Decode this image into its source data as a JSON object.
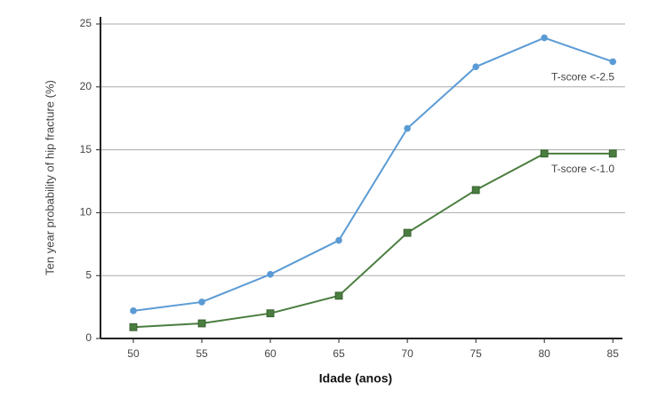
{
  "chart_data": {
    "type": "line",
    "x_label": "Idade (anos)",
    "y_label": "Ten year probability of hip fracture (%)",
    "x": [
      50,
      55,
      60,
      65,
      70,
      75,
      80,
      85
    ],
    "series": [
      {
        "name": "T-score <-2.5",
        "color": "#5b9bd5",
        "marker": "circle",
        "values": [
          2.2,
          2.9,
          5.1,
          7.8,
          16.7,
          21.6,
          23.9,
          22.0
        ]
      },
      {
        "name": "T-score <-1.0",
        "color": "#4a7d3f",
        "marker": "square",
        "values": [
          0.9,
          1.2,
          2.0,
          3.4,
          8.4,
          11.8,
          14.7,
          14.7
        ]
      }
    ],
    "xlim": [
      47.6,
      85.7
    ],
    "xticks": [
      50,
      55,
      60,
      65,
      70,
      75,
      80,
      85
    ],
    "ylim": [
      0,
      25
    ],
    "yticks": [
      0,
      5,
      10,
      15,
      20,
      25
    ],
    "grid": true
  }
}
